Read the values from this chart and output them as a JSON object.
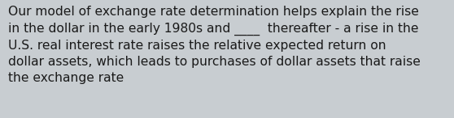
{
  "text": "Our model of exchange rate determination helps explain the rise\nin the dollar in the early 1980s and ____  thereafter - a rise in the\nU.S. real interest rate raises the relative expected return on\ndollar assets, which leads to purchases of dollar assets that raise\nthe exchange rate",
  "background_color": "#c8cdd1",
  "text_color": "#1a1a1a",
  "font_size": 11.2,
  "fig_width": 5.58,
  "fig_height": 1.46,
  "dpi": 100
}
